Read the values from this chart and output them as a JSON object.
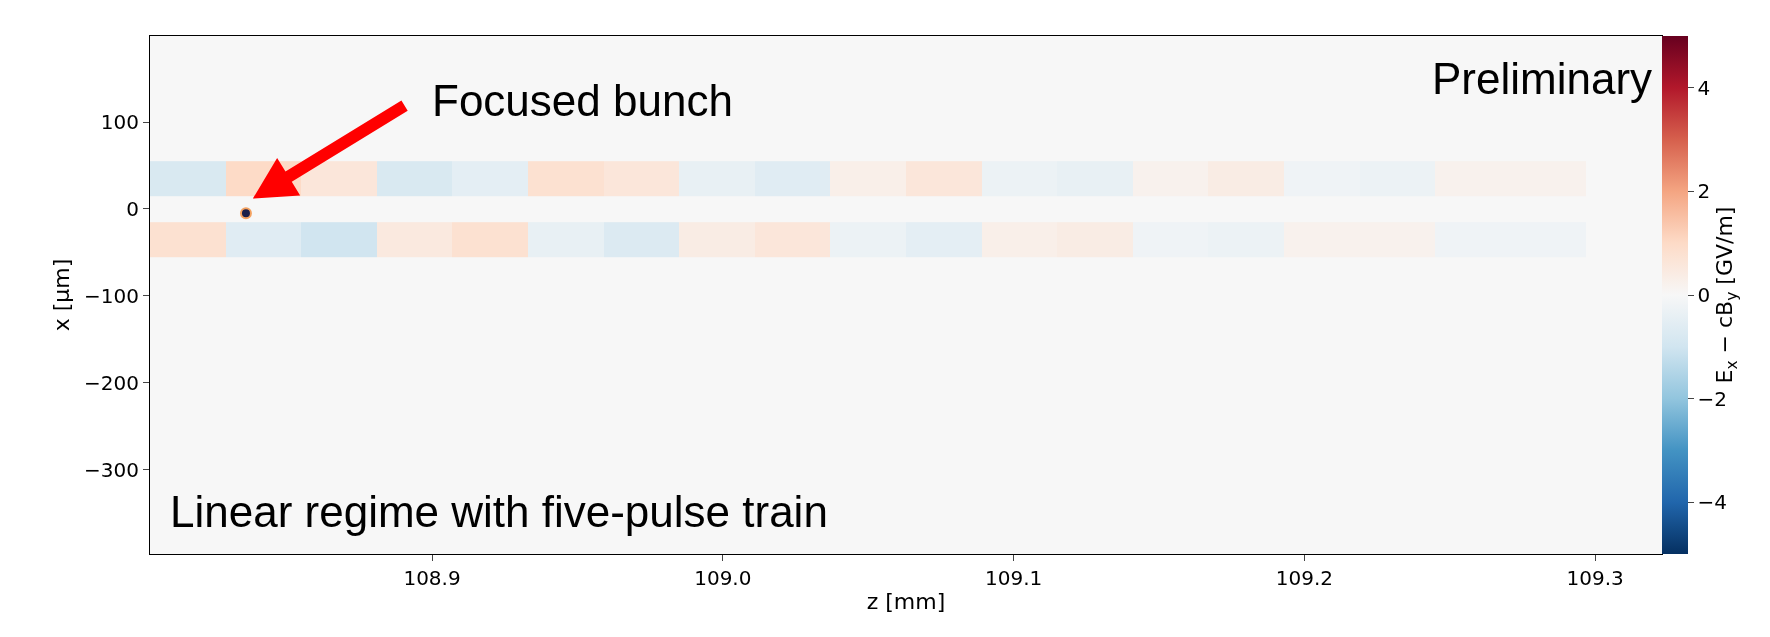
{
  "chart_data": {
    "type": "heatmap",
    "xlabel": "z [mm]",
    "ylabel": "x [µm]",
    "clabel": "E$_{x}$ − cB$_{y}$ [GV/m]",
    "x": [
      108.816,
      108.842,
      108.868,
      108.894,
      108.92,
      108.946,
      108.972,
      108.998,
      109.024,
      109.05,
      109.076,
      109.102,
      109.128,
      109.154,
      109.18,
      109.206,
      109.232,
      109.258,
      109.284,
      109.31
    ],
    "y": [
      160,
      80,
      30,
      0,
      -30,
      -80,
      -240,
      -400
    ],
    "cells": [
      [
        0,
        0,
        0,
        0,
        0,
        0,
        0,
        0,
        0,
        0,
        0,
        0,
        0,
        0,
        0,
        0,
        0,
        0,
        0,
        0
      ],
      [
        0,
        0,
        0,
        0,
        0,
        0,
        0,
        0,
        0,
        0,
        0,
        0,
        0,
        0,
        0,
        0,
        0,
        0,
        0,
        0
      ],
      [
        -0.8,
        1.0,
        0.6,
        -0.8,
        -0.5,
        0.8,
        0.6,
        -0.4,
        -0.6,
        0.3,
        0.6,
        -0.3,
        -0.4,
        0.2,
        0.4,
        -0.2,
        -0.3,
        0.2,
        0.2,
        0
      ],
      [
        0,
        0,
        0,
        0,
        0,
        0,
        0,
        0,
        0,
        0,
        0,
        0,
        0,
        0,
        0,
        0,
        0,
        0,
        0,
        0
      ],
      [
        0.8,
        -0.6,
        -1.0,
        0.5,
        0.8,
        -0.4,
        -0.7,
        0.4,
        0.6,
        -0.3,
        -0.5,
        0.3,
        0.4,
        -0.2,
        -0.3,
        0.2,
        0.2,
        -0.2,
        -0.2,
        0
      ],
      [
        0,
        0,
        0,
        0,
        0,
        0,
        0,
        0,
        0,
        0,
        0,
        0,
        0,
        0,
        0,
        0,
        0,
        0,
        0,
        0
      ],
      [
        0,
        0,
        0,
        0,
        0,
        0,
        0,
        0,
        0,
        0,
        0,
        0,
        0,
        0,
        0,
        0,
        0,
        0,
        0,
        0
      ],
      [
        0,
        0,
        0,
        0,
        0,
        0,
        0,
        0,
        0,
        0,
        0,
        0,
        0,
        0,
        0,
        0,
        0,
        0,
        0,
        0
      ]
    ],
    "clim": [
      -5,
      5
    ],
    "cticks": [
      -4,
      -2,
      0,
      2,
      4
    ],
    "xlim": [
      108.803,
      109.323
    ],
    "xticks": [
      {
        "value": 108.9,
        "label": "108.9"
      },
      {
        "value": 109.0,
        "label": "109.0"
      },
      {
        "value": 109.1,
        "label": "109.1"
      },
      {
        "value": 109.2,
        "label": "109.2"
      },
      {
        "value": 109.3,
        "label": "109.3"
      }
    ],
    "ylim": [
      -397,
      199
    ],
    "yticks": [
      -300,
      -200,
      -100,
      0,
      100
    ],
    "series": [
      {
        "type": "scatter",
        "x": [
          108.836
        ],
        "values": [
          -5
        ],
        "color": "#1b1f4a"
      }
    ],
    "marker": "circle",
    "annotations": [
      "Focused bunch",
      "Preliminary",
      "Linear regime with five-pulse train"
    ]
  }
}
